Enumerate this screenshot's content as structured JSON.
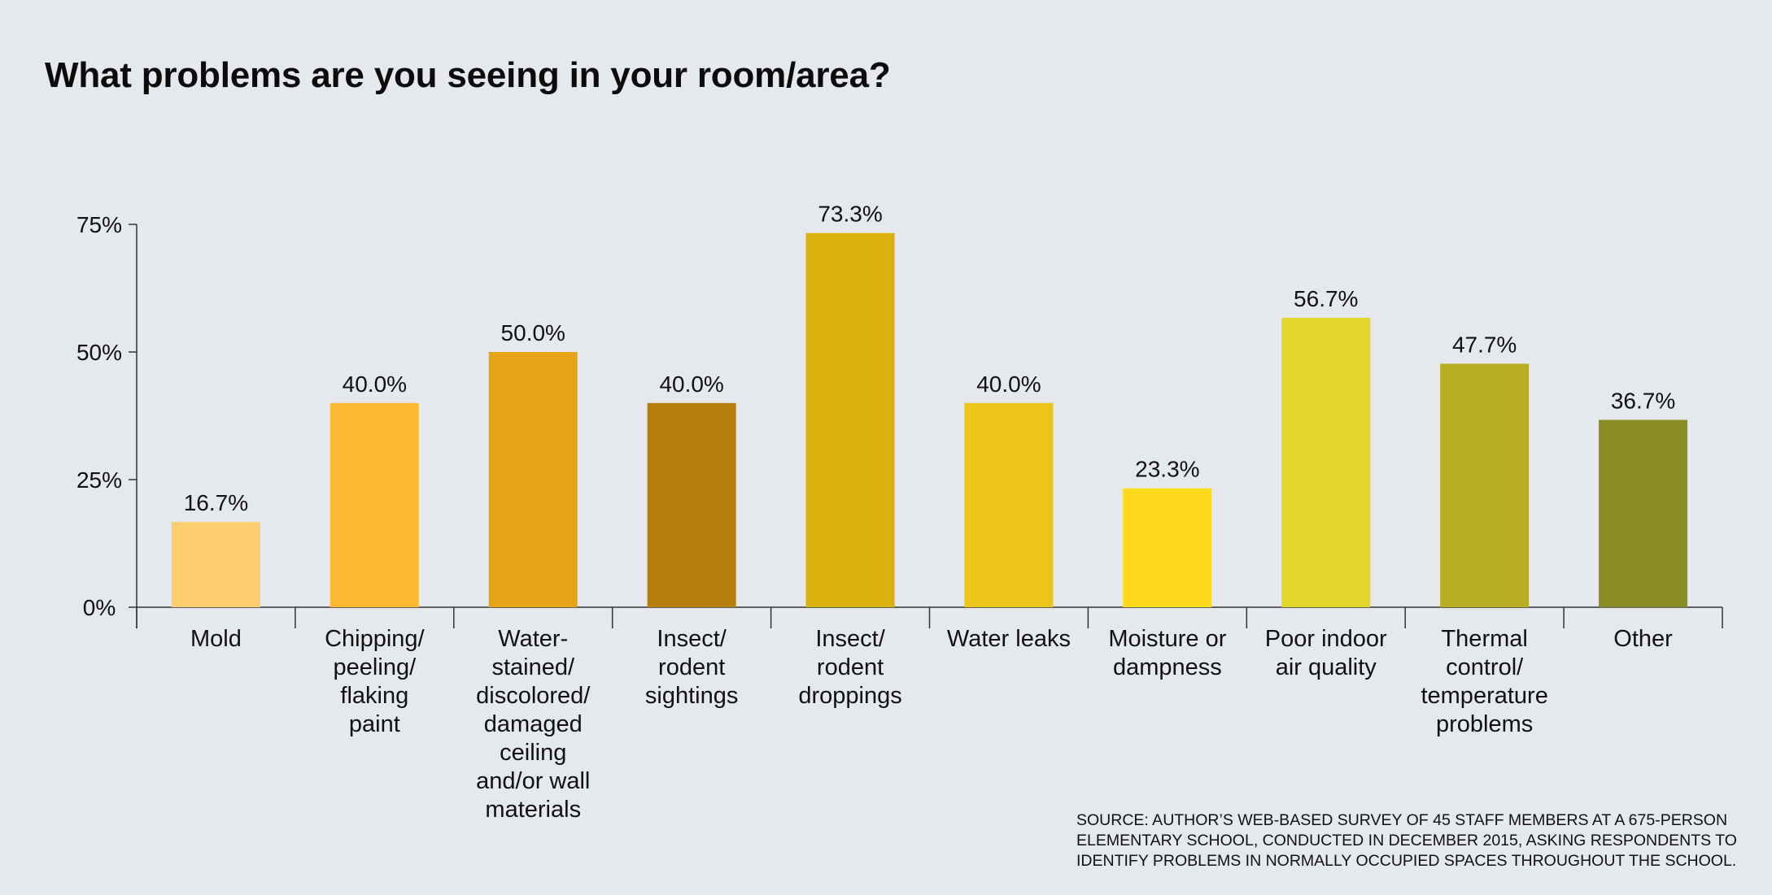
{
  "title": "What problems are you seeing in your room/area?",
  "source": [
    "SOURCE: AUTHOR’S WEB-BASED SURVEY OF 45 STAFF MEMBERS AT A 675-PERSON",
    "ELEMENTARY SCHOOL, CONDUCTED IN DECEMBER 2015, ASKING RESPONDENTS TO",
    "IDENTIFY PROBLEMS IN NORMALLY OCCUPIED SPACES THROUGHOUT THE SCHOOL."
  ],
  "chart_data": {
    "type": "bar",
    "title": "What problems are you seeing in your room/area?",
    "xlabel": "",
    "ylabel": "",
    "ylim": [
      0,
      75
    ],
    "yticks": [
      0,
      25,
      50,
      75
    ],
    "ytick_labels": [
      "0%",
      "25%",
      "50%",
      "75%"
    ],
    "grid": false,
    "legend": "none",
    "categories": [
      [
        "Mold"
      ],
      [
        "Chipping/",
        "peeling/",
        "flaking",
        "paint"
      ],
      [
        "Water-",
        "stained/",
        "discolored/",
        "damaged",
        "ceiling",
        "and/or wall",
        "materials"
      ],
      [
        "Insect/",
        "rodent",
        "sightings"
      ],
      [
        "Insect/",
        "rodent",
        "droppings"
      ],
      [
        "Water leaks"
      ],
      [
        "Moisture or",
        "dampness"
      ],
      [
        "Poor indoor",
        "air quality"
      ],
      [
        "Thermal",
        "control/",
        "temperature",
        "problems"
      ],
      [
        "Other"
      ]
    ],
    "values": [
      16.7,
      40.0,
      50.0,
      40.0,
      73.3,
      40.0,
      23.3,
      56.7,
      47.7,
      36.7
    ],
    "value_labels": [
      "16.7%",
      "40.0%",
      "50.0%",
      "40.0%",
      "73.3%",
      "40.0%",
      "23.3%",
      "56.7%",
      "47.7%",
      "36.7%"
    ],
    "colors": [
      "#fecd6d",
      "#fdb931",
      "#e6a417",
      "#b47f0e",
      "#dab10a",
      "#ecc51b",
      "#fddb1c",
      "#e2d52c",
      "#b7ae22",
      "#8a8c24"
    ]
  }
}
